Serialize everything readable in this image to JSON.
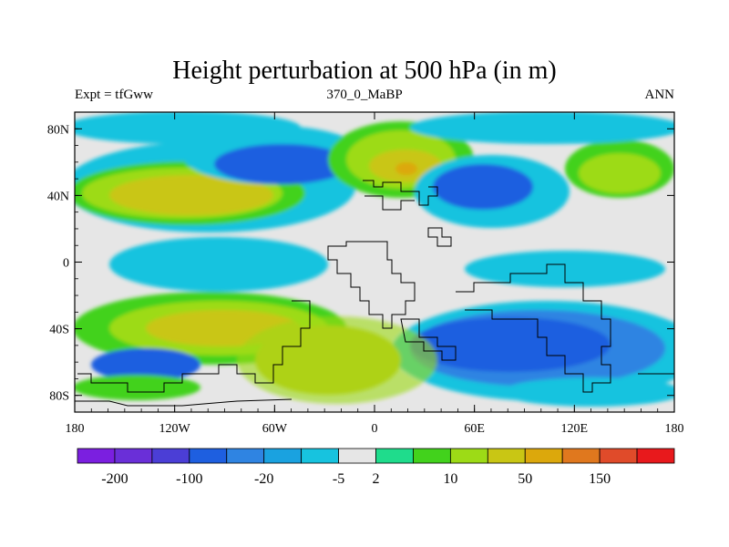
{
  "chart_data": {
    "type": "heatmap",
    "title": "Height perturbation at 500 hPa (in m)",
    "left_label": "Expt = tfGww",
    "center_label": "370_0_MaBP",
    "right_label": "ANN",
    "x_ticks": [
      "180",
      "120W",
      "60W",
      "0",
      "60E",
      "120E",
      "180"
    ],
    "y_ticks": [
      "80N",
      "40N",
      "0",
      "40S",
      "80S"
    ],
    "xlim": [
      -180,
      180
    ],
    "ylim": [
      -90,
      90
    ],
    "colorbar": {
      "colors": [
        "#7b1fe0",
        "#6a2fd8",
        "#4b3ed6",
        "#1e5fe0",
        "#2f84e2",
        "#1aa2e0",
        "#17c3df",
        "#e6e6e6",
        "#1fdc8c",
        "#42d21c",
        "#9ddb16",
        "#c9c614",
        "#dca80c",
        "#e0781e",
        "#e04b2a",
        "#e8191c"
      ],
      "labels": [
        "-200",
        "-100",
        "-20",
        "-5",
        "2",
        "10",
        "50",
        "150"
      ]
    }
  }
}
